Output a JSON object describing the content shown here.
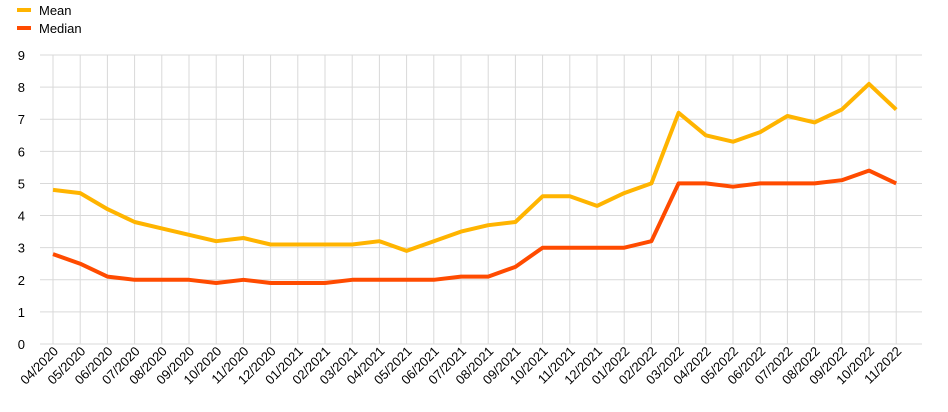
{
  "chart_data": {
    "type": "line",
    "title": "",
    "xlabel": "",
    "ylabel": "",
    "ylim": [
      0,
      9
    ],
    "yticks": [
      "0",
      "1",
      "2",
      "3",
      "4",
      "5",
      "6",
      "7",
      "8",
      "9"
    ],
    "grid": true,
    "legend_position": "top-left",
    "categories": [
      "04/2020",
      "05/2020",
      "06/2020",
      "07/2020",
      "08/2020",
      "09/2020",
      "10/2020",
      "11/2020",
      "12/2020",
      "01/2021",
      "02/2021",
      "03/2021",
      "04/2021",
      "05/2021",
      "06/2021",
      "07/2021",
      "08/2021",
      "09/2021",
      "10/2021",
      "11/2021",
      "12/2021",
      "01/2022",
      "02/2022",
      "03/2022",
      "04/2022",
      "05/2022",
      "06/2022",
      "07/2022",
      "08/2022",
      "09/2022",
      "10/2022",
      "11/2022"
    ],
    "series": [
      {
        "name": "Mean",
        "color": "#FFB400",
        "values": [
          4.8,
          4.7,
          4.2,
          3.8,
          3.6,
          3.4,
          3.2,
          3.3,
          3.1,
          3.1,
          3.1,
          3.1,
          3.2,
          2.9,
          3.2,
          3.5,
          3.7,
          3.8,
          4.6,
          4.6,
          4.3,
          4.7,
          5.0,
          7.2,
          6.5,
          6.3,
          6.6,
          7.1,
          6.9,
          7.3,
          8.1,
          7.3
        ]
      },
      {
        "name": "Median",
        "color": "#FF4B00",
        "values": [
          2.8,
          2.5,
          2.1,
          2.0,
          2.0,
          2.0,
          1.9,
          2.0,
          1.9,
          1.9,
          1.9,
          2.0,
          2.0,
          2.0,
          2.0,
          2.1,
          2.1,
          2.4,
          3.0,
          3.0,
          3.0,
          3.0,
          3.2,
          5.0,
          5.0,
          4.9,
          5.0,
          5.0,
          5.0,
          5.1,
          5.4,
          5.0
        ]
      }
    ]
  }
}
